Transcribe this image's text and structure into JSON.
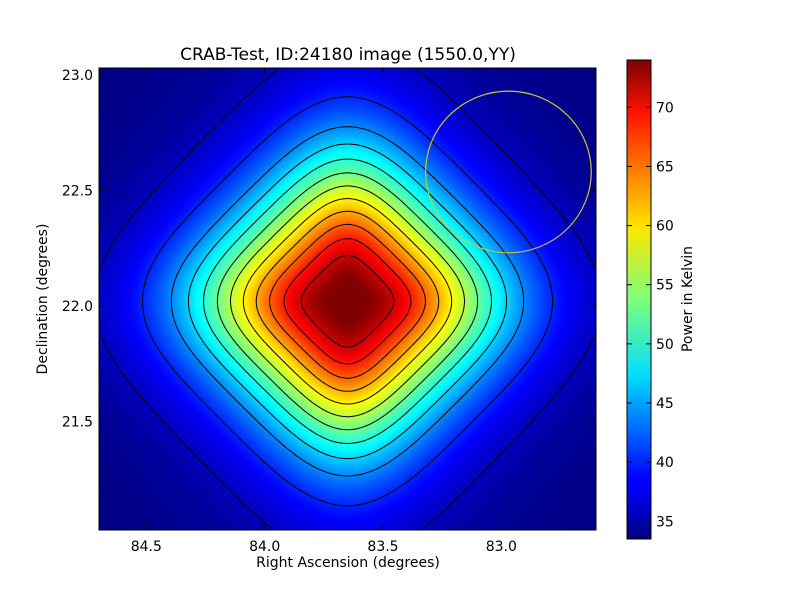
{
  "chart_data": {
    "type": "heatmap",
    "title": "CRAB-Test, ID:24180 image (1550.0,YY)",
    "xlabel": "Right Ascension (degrees)",
    "ylabel": "Declination (degrees)",
    "colorbar_label": "Power in Kelvin",
    "colormap": "jet",
    "xlim": [
      84.7,
      82.6
    ],
    "ylim": [
      21.03,
      23.03
    ],
    "x_inverted": true,
    "xticks": [
      84.5,
      84.0,
      83.5,
      83.0
    ],
    "xtick_labels": [
      "84.5",
      "84.0",
      "83.5",
      "83.0"
    ],
    "yticks": [
      21.5,
      22.0,
      22.5,
      23.0
    ],
    "ytick_labels": [
      "21.5",
      "22.0",
      "22.5",
      "23.0"
    ],
    "colorbar_range": [
      33.5,
      74.0
    ],
    "colorbar_ticks": [
      35,
      40,
      45,
      50,
      55,
      60,
      65,
      70
    ],
    "colorbar_tick_labels": [
      "35",
      "40",
      "45",
      "50",
      "55",
      "60",
      "65",
      "70"
    ],
    "peak": {
      "ra": 83.65,
      "dec": 22.02,
      "value": 74.0
    },
    "contour_levels": [
      36,
      40,
      44,
      47,
      50,
      53,
      56,
      59,
      62,
      65,
      68,
      71
    ],
    "contour_color": "#000000",
    "marker_circle": {
      "ra": 82.97,
      "dec": 22.58,
      "radius_deg": 0.35,
      "color": "#c8c832"
    }
  }
}
